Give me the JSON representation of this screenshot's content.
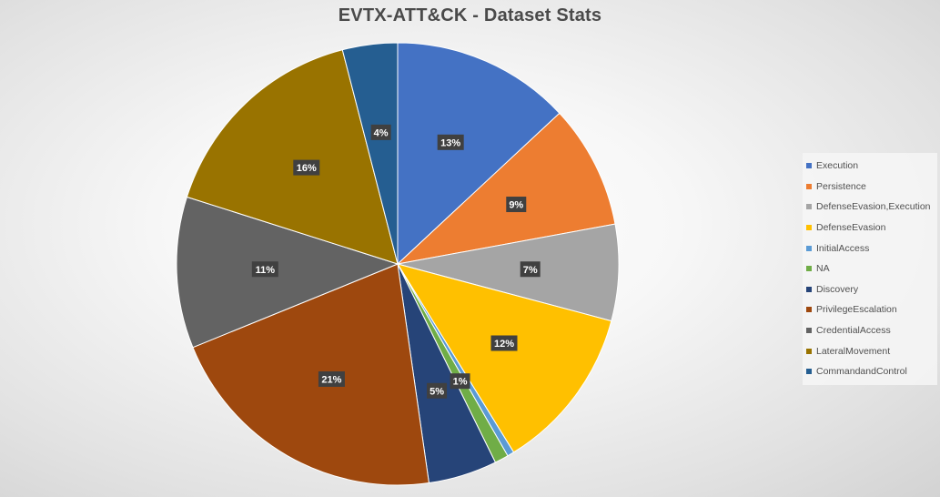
{
  "chart_data": {
    "type": "pie",
    "title": "EVTX-ATT&CK - Dataset Stats",
    "categories": [
      "Execution",
      "Persistence",
      "DefenseEvasion,Execution",
      "DefenseEvasion",
      "InitialAccess",
      "NA",
      "Discovery",
      "PrivilegeEscalation",
      "CredentialAccess",
      "LateralMovement",
      "CommandandControl"
    ],
    "values": [
      13,
      9,
      7,
      12,
      0.5,
      1,
      5,
      21,
      11,
      16,
      4
    ],
    "data_labels": [
      "13%",
      "9%",
      "7%",
      "12%",
      "",
      "1%",
      "5%",
      "21%",
      "11%",
      "16%",
      "4%"
    ],
    "colors": [
      "#4472C4",
      "#ED7D31",
      "#A5A5A5",
      "#FFC000",
      "#5B9BD5",
      "#70AD47",
      "#264478",
      "#9E480E",
      "#636363",
      "#997300",
      "#255E91"
    ],
    "legend_position": "right",
    "start_angle": "12 o'clock",
    "direction": "clockwise"
  }
}
